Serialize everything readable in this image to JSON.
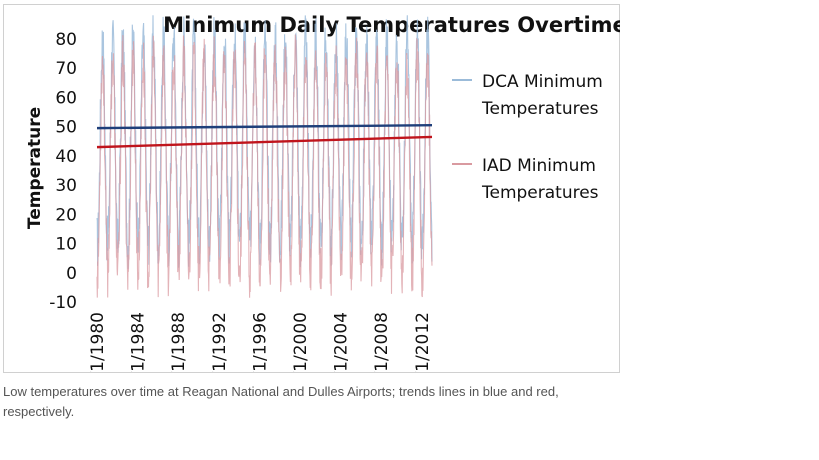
{
  "chart_data": {
    "type": "line",
    "title": "Minimum Daily Temperatures Overtime",
    "ylabel": "Temperature",
    "xlabel": "",
    "ylim": [
      -10,
      85
    ],
    "yticks": [
      "80",
      "70",
      "60",
      "50",
      "40",
      "30",
      "20",
      "10",
      "0",
      "-10"
    ],
    "xticks": [
      "1/1/1980",
      "1/1/1984",
      "1/1/1988",
      "1/1/1992",
      "1/1/1996",
      "1/1/2000",
      "1/1/2004",
      "1/1/2008",
      "1/1/2012"
    ],
    "x_range_years": [
      1980,
      2013
    ],
    "legend_position": "right",
    "grid": false,
    "series": [
      {
        "name": "DCA Minimum Temperatures",
        "color": "#9bbbd9",
        "seasonal_low": 10,
        "seasonal_high": 80
      },
      {
        "name": "IAD Minimum Temperatures",
        "color": "#d99aa0",
        "seasonal_low": 0,
        "seasonal_high": 73
      }
    ],
    "trendlines": [
      {
        "series": "DCA Minimum Temperatures",
        "color": "#1f3f7a",
        "start": 49.5,
        "end": 50.5
      },
      {
        "series": "IAD Minimum Temperatures",
        "color": "#c0141c",
        "start": 43,
        "end": 46.5
      }
    ]
  },
  "caption": "Low temperatures over time at Reagan National and Dulles Airports; trends lines in blue and red, respectively."
}
